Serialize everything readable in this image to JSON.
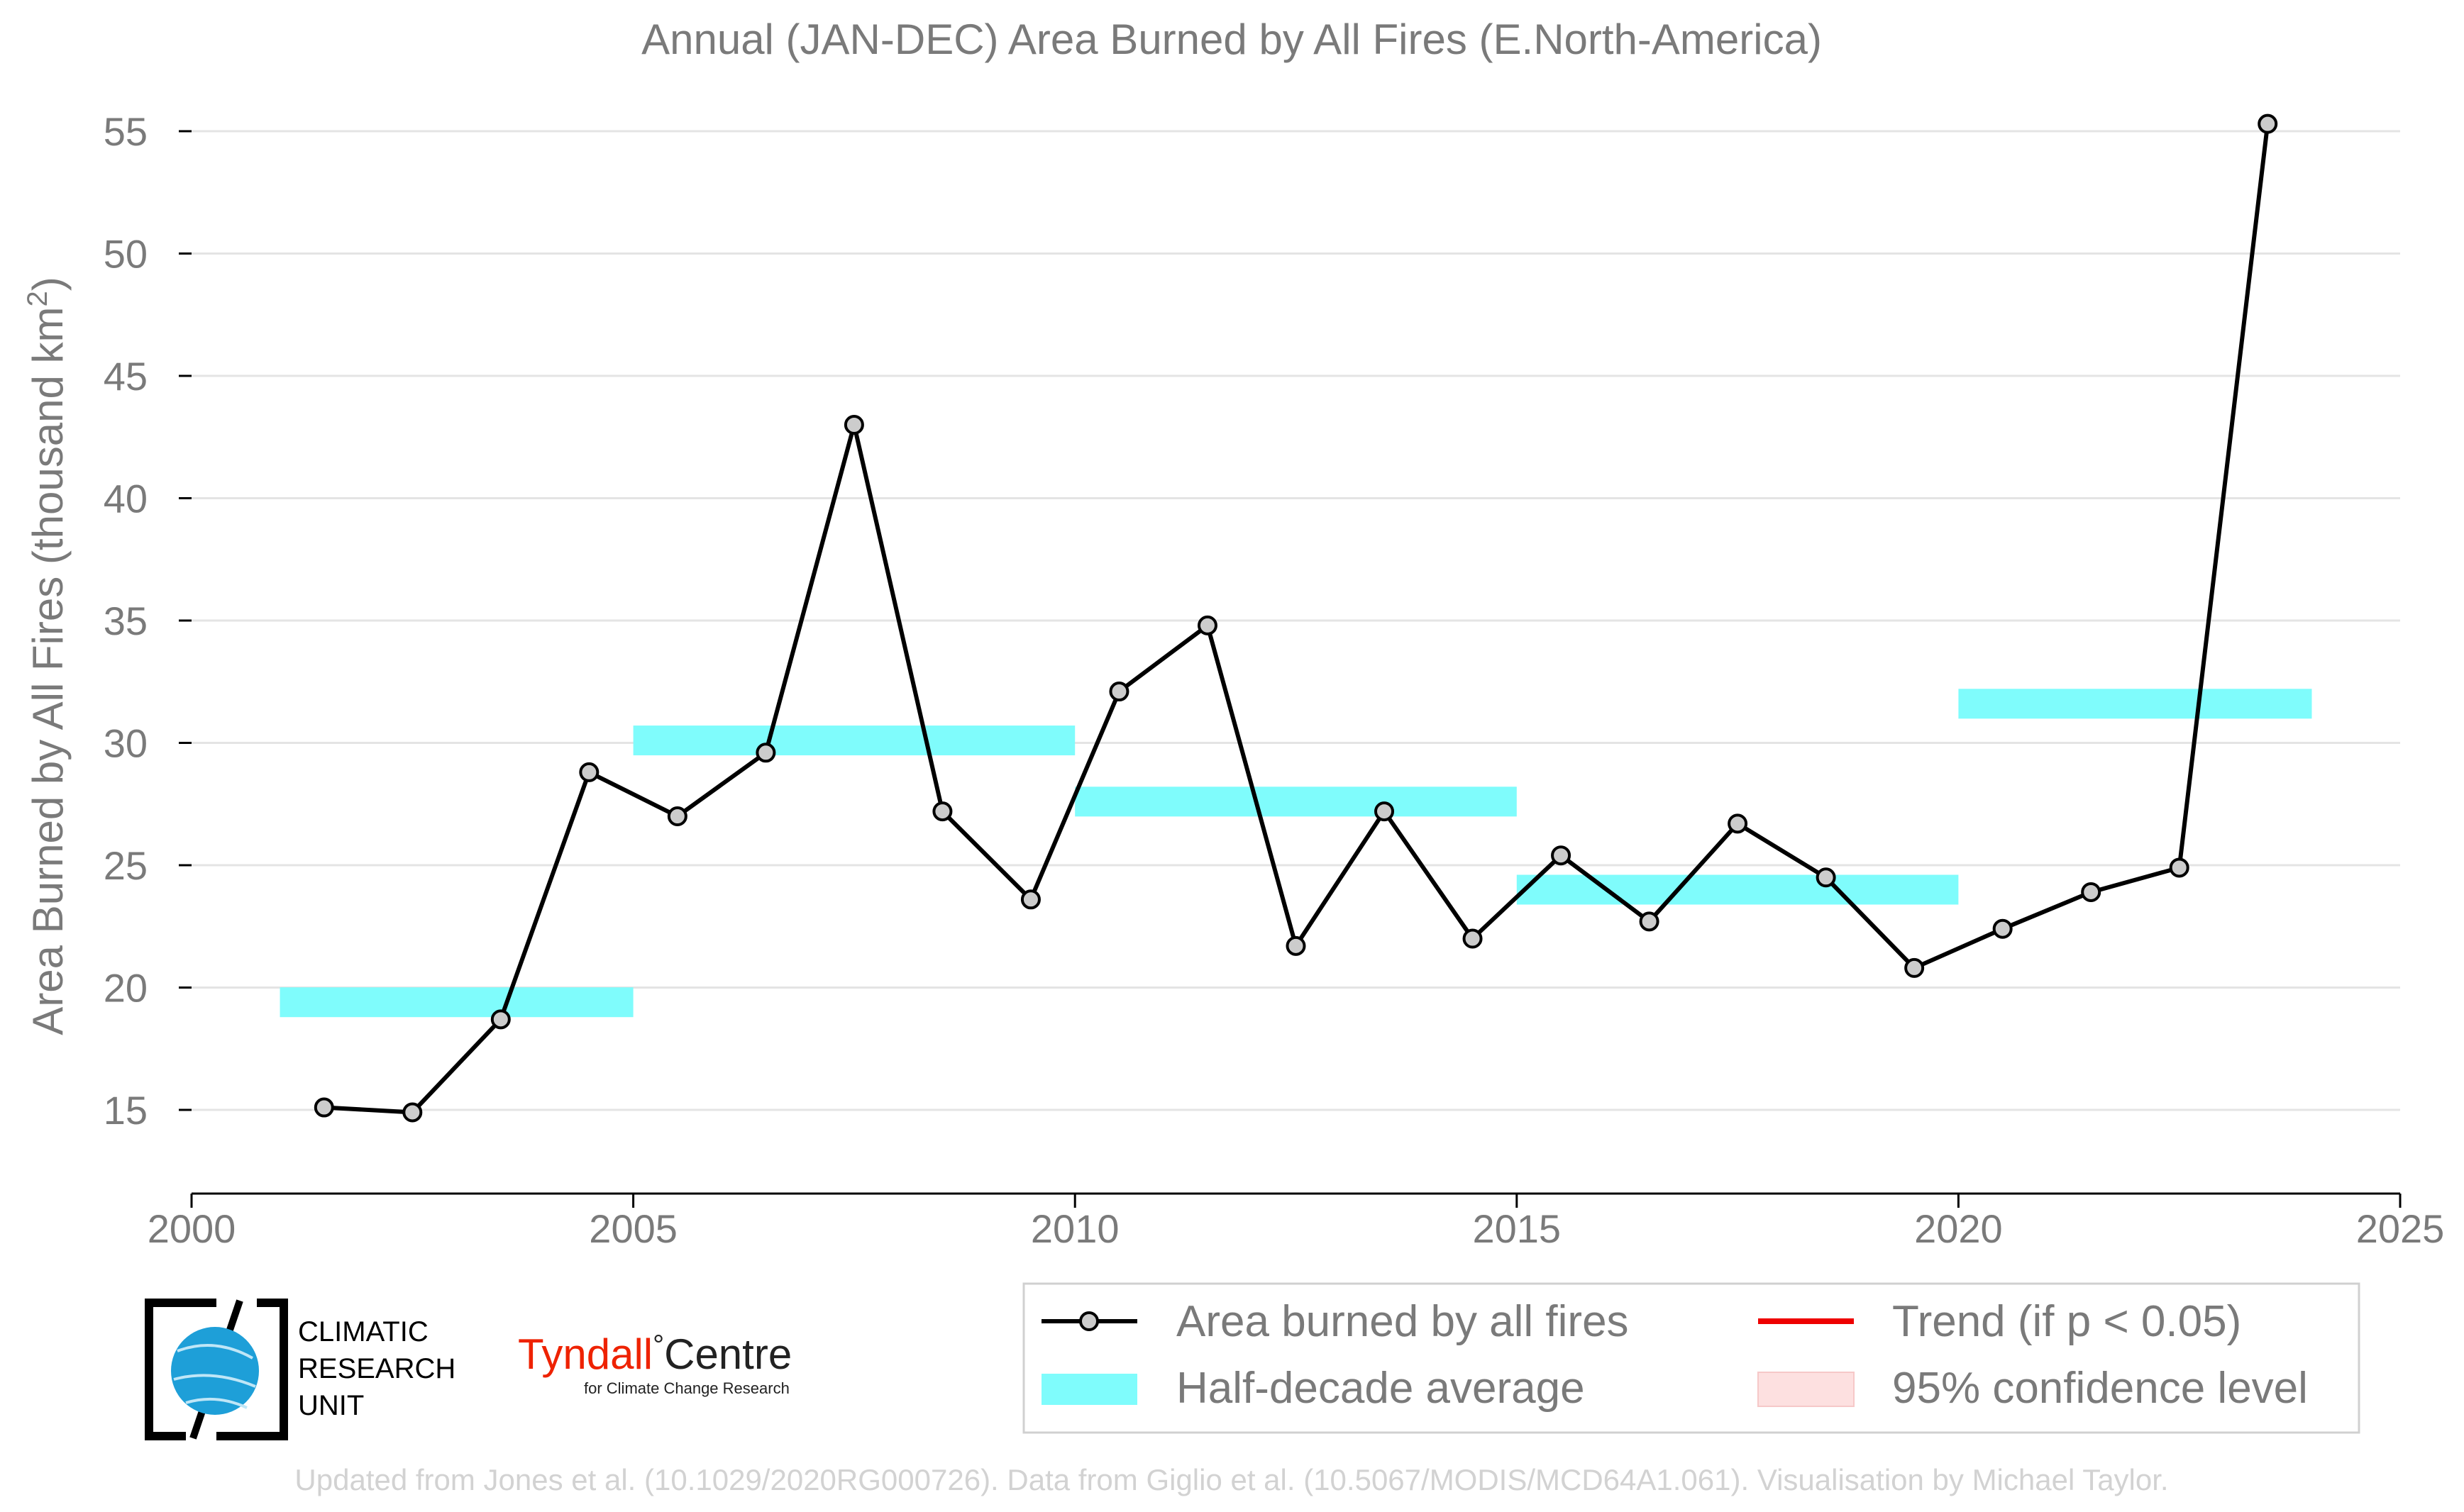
{
  "chart_data": {
    "type": "line",
    "title": "Annual (JAN-DEC) Area Burned by All Fires (E.North-America)",
    "ylabel": "Area Burned by All Fires (thousand km",
    "ylabel_sup": "2",
    "ylabel_close": ")",
    "xlabel": "",
    "xlim": [
      2000,
      2025
    ],
    "ylim": [
      12,
      55.5
    ],
    "x_ticks": [
      2000,
      2005,
      2010,
      2015,
      2020,
      2025
    ],
    "y_ticks": [
      15,
      20,
      25,
      30,
      35,
      40,
      45,
      50,
      55
    ],
    "grid": "horizontal",
    "series": [
      {
        "name": "Area burned by all fires",
        "color": "#000000",
        "marker_fill": "#cccccc",
        "x": [
          2001.5,
          2002.5,
          2003.5,
          2004.5,
          2005.5,
          2006.5,
          2007.5,
          2008.5,
          2009.5,
          2010.5,
          2011.5,
          2012.5,
          2013.5,
          2014.5,
          2015.5,
          2016.5,
          2017.5,
          2018.5,
          2019.5,
          2020.5,
          2021.5,
          2022.5,
          2023.5
        ],
        "values": [
          15.1,
          14.9,
          18.7,
          28.8,
          27.0,
          29.6,
          43.0,
          27.2,
          23.6,
          32.1,
          34.8,
          21.7,
          27.2,
          22.0,
          25.4,
          22.7,
          26.7,
          24.5,
          20.8,
          22.4,
          23.9,
          24.9,
          55.3
        ]
      }
    ],
    "half_decade_average": {
      "name": "Half-decade average",
      "color": "#7ffcfc",
      "segments": [
        {
          "x_start": 2001,
          "x_end": 2005,
          "value": 19.4
        },
        {
          "x_start": 2005,
          "x_end": 2010,
          "value": 30.1
        },
        {
          "x_start": 2010,
          "x_end": 2015,
          "value": 27.6
        },
        {
          "x_start": 2015,
          "x_end": 2020,
          "value": 24.0
        },
        {
          "x_start": 2020,
          "x_end": 2024,
          "value": 31.6
        }
      ]
    },
    "legend": {
      "placement": "bottom",
      "entries": [
        {
          "label": "Area burned by all fires",
          "kind": "line-marker",
          "color": "#000000"
        },
        {
          "label": "Trend (if p < 0.05)",
          "kind": "line",
          "color": "#ee0000"
        },
        {
          "label": "Half-decade average",
          "kind": "band",
          "color": "#7ffcfc"
        },
        {
          "label": "95% confidence level",
          "kind": "patch",
          "color": "#fde0e0"
        }
      ]
    }
  },
  "logos": {
    "cru_line1": "CLIMATIC",
    "cru_line2": "RESEARCH",
    "cru_line3": "UNIT",
    "tyndall_main": "Tyndall",
    "tyndall_degree": "°",
    "tyndall_centre": "Centre",
    "tyndall_sub": "for Climate Change Research"
  },
  "footer": "Updated from Jones et al. (10.1029/2020RG000726). Data from Giglio et al. (10.5067/MODIS/MCD64A1.061). Visualisation by Michael Taylor."
}
